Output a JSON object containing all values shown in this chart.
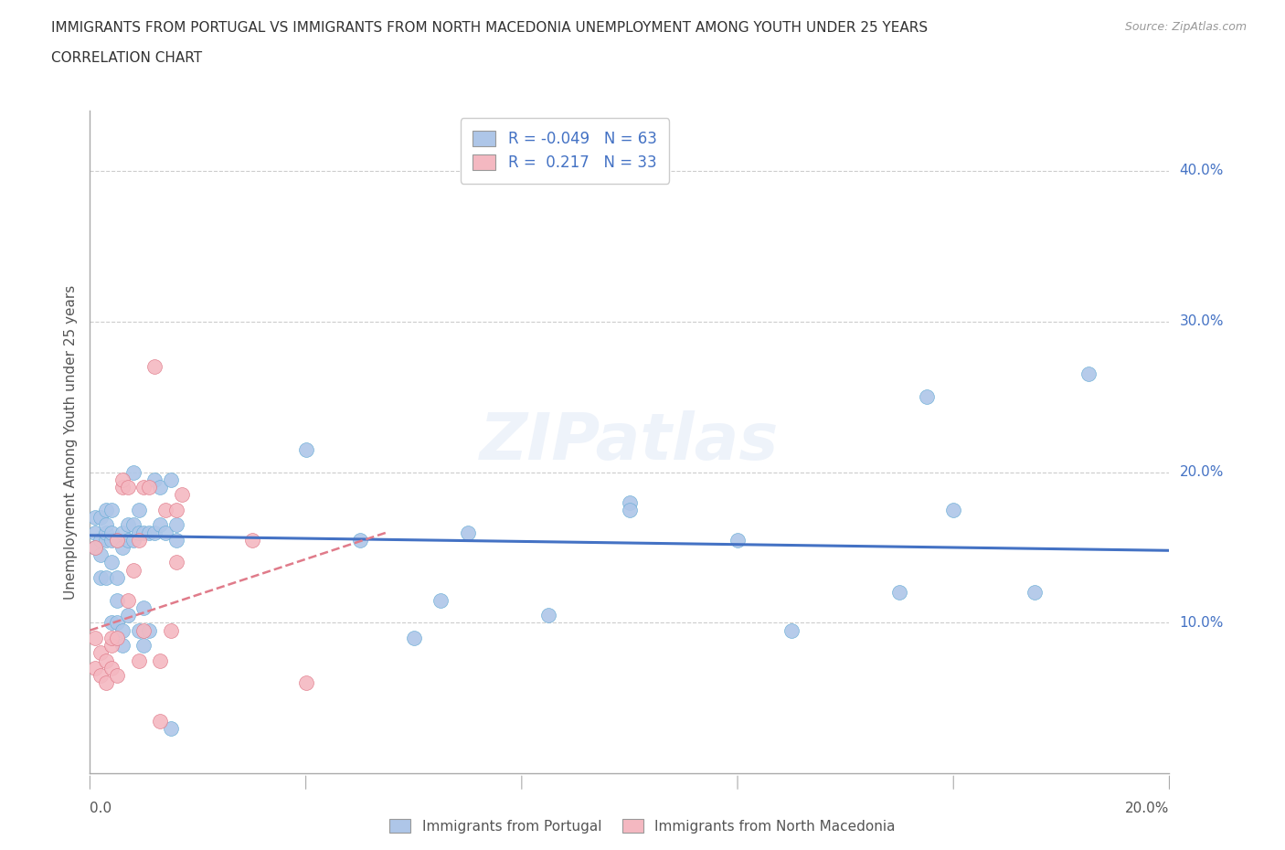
{
  "title_line1": "IMMIGRANTS FROM PORTUGAL VS IMMIGRANTS FROM NORTH MACEDONIA UNEMPLOYMENT AMONG YOUTH UNDER 25 YEARS",
  "title_line2": "CORRELATION CHART",
  "source": "Source: ZipAtlas.com",
  "ylabel": "Unemployment Among Youth under 25 years",
  "xlim": [
    0.0,
    0.2
  ],
  "ylim": [
    0.0,
    0.44
  ],
  "portugal_color": "#aec6e8",
  "portugal_edge": "#6baed6",
  "portugal_line_color": "#4472c4",
  "north_mac_color": "#f4b8c1",
  "north_mac_edge": "#e07b8a",
  "north_mac_line_color": "#e07b8a",
  "watermark": "ZIPatlas",
  "legend_label_portugal": "Immigrants from Portugal",
  "legend_label_macedonia": "Immigrants from North Macedonia",
  "portugal_R": -0.049,
  "portugal_N": 63,
  "macedonia_R": 0.217,
  "macedonia_N": 33,
  "portugal_line_x": [
    0.0,
    0.2
  ],
  "portugal_line_y": [
    0.158,
    0.148
  ],
  "macedonia_line_x": [
    0.0,
    0.055
  ],
  "macedonia_line_y": [
    0.095,
    0.16
  ],
  "portugal_x": [
    0.001,
    0.001,
    0.001,
    0.002,
    0.002,
    0.002,
    0.002,
    0.003,
    0.003,
    0.003,
    0.003,
    0.003,
    0.004,
    0.004,
    0.004,
    0.004,
    0.004,
    0.005,
    0.005,
    0.005,
    0.005,
    0.006,
    0.006,
    0.006,
    0.006,
    0.007,
    0.007,
    0.007,
    0.008,
    0.008,
    0.008,
    0.009,
    0.009,
    0.009,
    0.01,
    0.01,
    0.01,
    0.011,
    0.011,
    0.012,
    0.012,
    0.013,
    0.013,
    0.014,
    0.015,
    0.015,
    0.016,
    0.016,
    0.04,
    0.05,
    0.06,
    0.065,
    0.07,
    0.085,
    0.1,
    0.1,
    0.12,
    0.13,
    0.15,
    0.155,
    0.16,
    0.175,
    0.185
  ],
  "portugal_y": [
    0.15,
    0.16,
    0.17,
    0.13,
    0.145,
    0.155,
    0.17,
    0.13,
    0.155,
    0.16,
    0.165,
    0.175,
    0.1,
    0.14,
    0.155,
    0.16,
    0.175,
    0.1,
    0.115,
    0.13,
    0.155,
    0.085,
    0.095,
    0.15,
    0.16,
    0.105,
    0.155,
    0.165,
    0.155,
    0.165,
    0.2,
    0.095,
    0.16,
    0.175,
    0.085,
    0.11,
    0.16,
    0.095,
    0.16,
    0.16,
    0.195,
    0.165,
    0.19,
    0.16,
    0.03,
    0.195,
    0.155,
    0.165,
    0.215,
    0.155,
    0.09,
    0.115,
    0.16,
    0.105,
    0.18,
    0.175,
    0.155,
    0.095,
    0.12,
    0.25,
    0.175,
    0.12,
    0.265
  ],
  "macedonia_x": [
    0.001,
    0.001,
    0.001,
    0.002,
    0.002,
    0.003,
    0.003,
    0.004,
    0.004,
    0.004,
    0.005,
    0.005,
    0.005,
    0.006,
    0.006,
    0.007,
    0.007,
    0.008,
    0.009,
    0.009,
    0.01,
    0.01,
    0.011,
    0.012,
    0.013,
    0.013,
    0.014,
    0.015,
    0.016,
    0.016,
    0.017,
    0.03,
    0.04
  ],
  "macedonia_y": [
    0.07,
    0.09,
    0.15,
    0.065,
    0.08,
    0.06,
    0.075,
    0.07,
    0.085,
    0.09,
    0.065,
    0.09,
    0.155,
    0.19,
    0.195,
    0.115,
    0.19,
    0.135,
    0.075,
    0.155,
    0.095,
    0.19,
    0.19,
    0.27,
    0.035,
    0.075,
    0.175,
    0.095,
    0.14,
    0.175,
    0.185,
    0.155,
    0.06
  ]
}
